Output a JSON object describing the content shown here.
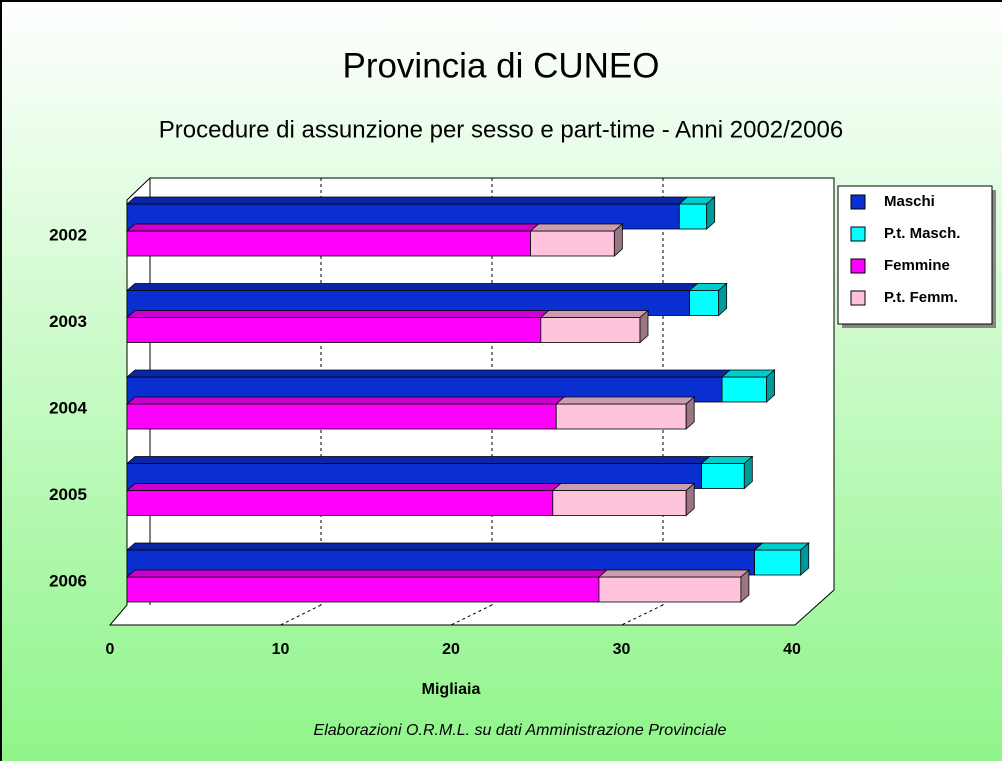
{
  "chart_data": {
    "type": "bar3d_stacked_horizontal",
    "title": "Provincia di CUNEO",
    "subtitle": "Procedure di assunzione per sesso e part-time - Anni 2002/2006",
    "x_label": "Migliaia",
    "footnote": "Elaborazioni O.R.M.L. su dati Amministrazione Provinciale",
    "categories": [
      "2002",
      "2003",
      "2004",
      "2005",
      "2006"
    ],
    "series": [
      {
        "name": "Maschi",
        "color": "#0a2fd0",
        "values": [
          32.3,
          32.9,
          34.8,
          33.6,
          36.7
        ]
      },
      {
        "name": "P.t. Masch.",
        "color": "#00ffff",
        "values": [
          1.6,
          1.7,
          2.6,
          2.5,
          2.7
        ]
      },
      {
        "name": "Femmine",
        "color": "#ff00ff",
        "values": [
          23.6,
          24.2,
          25.1,
          24.9,
          27.6
        ]
      },
      {
        "name": "P.t. Femm.",
        "color": "#ffc4dc",
        "values": [
          4.9,
          5.8,
          7.6,
          7.8,
          8.3
        ]
      }
    ],
    "xlim": [
      0,
      40
    ],
    "xticks": [
      0,
      10,
      20,
      30,
      40
    ],
    "grid": true
  }
}
